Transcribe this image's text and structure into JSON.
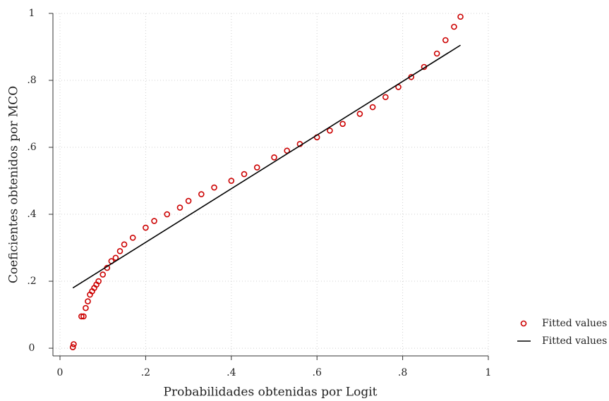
{
  "chart_data": {
    "type": "scatter",
    "xlabel": "Probabilidades obtenidas por Logit",
    "ylabel": "Coeficientes obtenidos por MCO",
    "xlim": [
      -0.0165,
      1
    ],
    "ylim": [
      -0.023,
      1
    ],
    "xticks": [
      0,
      {
        "value": 0.2,
        "label": ".2"
      },
      {
        "value": 0.4,
        "label": ".4"
      },
      {
        "value": 0.6,
        "label": ".6"
      },
      {
        "value": 0.8,
        "label": ".8"
      },
      1
    ],
    "yticks": [
      0,
      {
        "value": 0.2,
        "label": ".2"
      },
      {
        "value": 0.4,
        "label": ".4"
      },
      {
        "value": 0.6,
        "label": ".6"
      },
      {
        "value": 0.8,
        "label": ".8"
      },
      1
    ],
    "grid": true,
    "legend": "right",
    "series": [
      {
        "name": "Fitted values",
        "type": "scatter",
        "color": "#cc0000",
        "x": [
          0.03,
          0.032,
          0.05,
          0.055,
          0.06,
          0.065,
          0.07,
          0.075,
          0.08,
          0.085,
          0.09,
          0.1,
          0.11,
          0.12,
          0.13,
          0.14,
          0.15,
          0.17,
          0.2,
          0.22,
          0.25,
          0.28,
          0.3,
          0.33,
          0.36,
          0.4,
          0.43,
          0.46,
          0.5,
          0.53,
          0.56,
          0.6,
          0.63,
          0.66,
          0.7,
          0.73,
          0.76,
          0.79,
          0.82,
          0.85,
          0.88,
          0.9,
          0.92,
          0.935
        ],
        "values": [
          0.003,
          0.012,
          0.095,
          0.095,
          0.12,
          0.14,
          0.16,
          0.17,
          0.18,
          0.19,
          0.2,
          0.22,
          0.24,
          0.26,
          0.27,
          0.29,
          0.31,
          0.33,
          0.36,
          0.38,
          0.4,
          0.42,
          0.44,
          0.46,
          0.48,
          0.5,
          0.52,
          0.54,
          0.57,
          0.59,
          0.61,
          0.63,
          0.65,
          0.67,
          0.7,
          0.72,
          0.75,
          0.78,
          0.81,
          0.84,
          0.88,
          0.92,
          0.96,
          0.99
        ]
      },
      {
        "name": "Fitted values",
        "type": "line",
        "color": "#000000",
        "x": [
          0.03,
          0.935
        ],
        "values": [
          0.18,
          0.905
        ]
      }
    ]
  }
}
